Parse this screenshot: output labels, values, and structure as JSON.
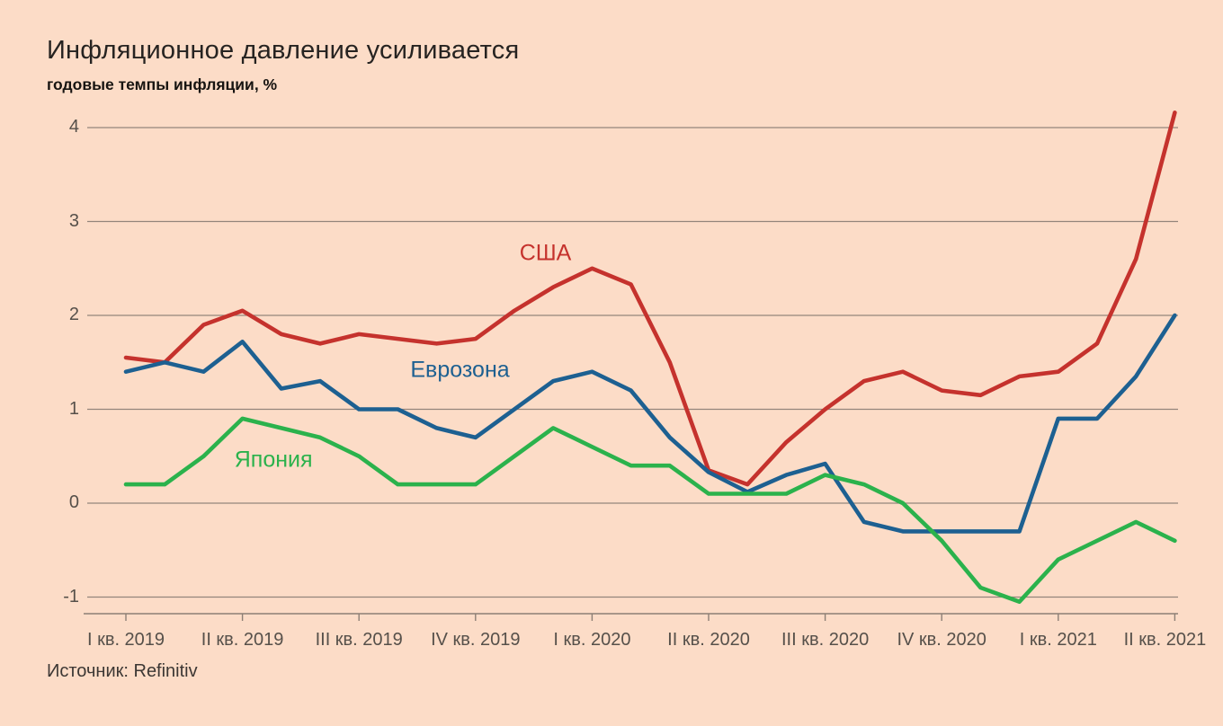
{
  "header": {
    "title": "Инфляционное давление усиливается",
    "subtitle": "годовые темпы инфляции, %"
  },
  "source": "Источник: Refinitiv",
  "colors": {
    "background": "#fcdcc7",
    "grid": "#94857b",
    "axis": "#8c7f75",
    "axis_text": "#56504a",
    "title_text": "#262321",
    "source_text": "#3c3734",
    "usa": "#c5322d",
    "eurozone": "#1d6091",
    "japan": "#2bb24c"
  },
  "chart_data": {
    "type": "line",
    "title": "Инфляционное давление усиливается",
    "ylabel": "годовые темпы инфляции, %",
    "x_unit": "month",
    "x_range_months": [
      "2019-01",
      "2021-04"
    ],
    "x_tick_labels": [
      "I кв. 2019",
      "II кв. 2019",
      "III кв. 2019",
      "IV кв. 2019",
      "I кв. 2020",
      "II кв. 2020",
      "III кв. 2020",
      "IV кв. 2020",
      "I кв. 2021",
      "II кв. 2021"
    ],
    "x_tick_month_indices": [
      0,
      3,
      6,
      9,
      12,
      15,
      18,
      21,
      24,
      27
    ],
    "yticks": [
      4,
      3,
      2,
      1,
      0,
      -1
    ],
    "ylim": [
      -1.25,
      4.3
    ],
    "grid": true,
    "legend_position": "inline-labels",
    "series": [
      {
        "name": "США",
        "slug": "usa",
        "color": "#c5322d",
        "values": [
          1.55,
          1.5,
          1.9,
          2.05,
          1.8,
          1.7,
          1.8,
          1.75,
          1.7,
          1.75,
          2.05,
          2.3,
          2.5,
          2.33,
          1.5,
          0.35,
          0.2,
          0.65,
          1.0,
          1.3,
          1.4,
          1.2,
          1.15,
          1.35,
          1.4,
          1.7,
          2.6,
          4.16
        ]
      },
      {
        "name": "Еврозона",
        "slug": "eurozone",
        "color": "#1d6091",
        "values": [
          1.4,
          1.5,
          1.4,
          1.72,
          1.22,
          1.3,
          1.0,
          1.0,
          0.8,
          0.7,
          1.0,
          1.3,
          1.4,
          1.2,
          0.7,
          0.33,
          0.12,
          0.3,
          0.42,
          -0.2,
          -0.3,
          -0.3,
          -0.3,
          -0.3,
          0.9,
          0.9,
          1.35,
          2.0
        ]
      },
      {
        "name": "Япония",
        "slug": "japan",
        "color": "#2bb24c",
        "values": [
          0.2,
          0.2,
          0.5,
          0.9,
          0.8,
          0.7,
          0.5,
          0.2,
          0.2,
          0.2,
          0.5,
          0.8,
          0.6,
          0.4,
          0.4,
          0.1,
          0.1,
          0.1,
          0.3,
          0.2,
          0.0,
          -0.4,
          -0.9,
          -1.05,
          -0.6,
          -0.4,
          -0.2,
          -0.4
        ]
      }
    ],
    "annotations": [
      {
        "text": "США",
        "slug": "usa",
        "color": "#c5322d",
        "month_index": 10.8,
        "value": 2.66
      },
      {
        "text": "Еврозона",
        "slug": "eurozone",
        "color": "#1d6091",
        "month_index": 8.6,
        "value": 1.42
      },
      {
        "text": "Япония",
        "slug": "japan",
        "color": "#2bb24c",
        "month_index": 3.8,
        "value": 0.46
      }
    ]
  }
}
